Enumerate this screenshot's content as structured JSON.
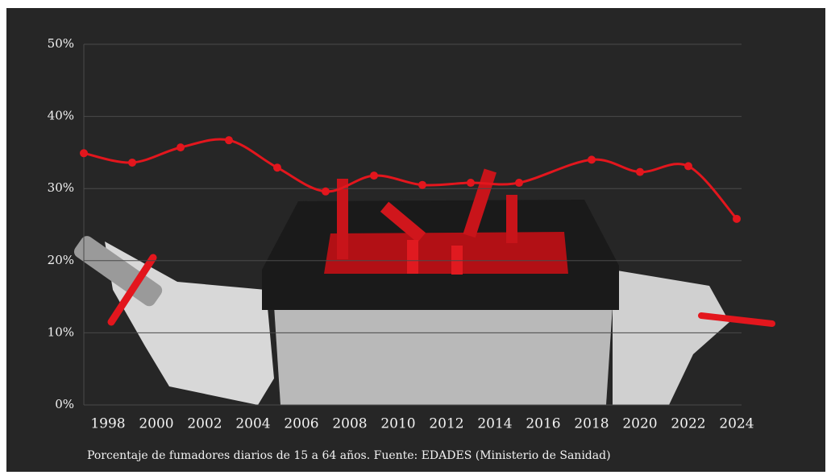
{
  "chart_data": {
    "type": "line",
    "caption": "Porcentaje de fumadores diarios de 15 a 64 años. Fuente: EDADES (Ministerio de Sanidad)",
    "x": [
      1997,
      1999,
      2001,
      2003,
      2005,
      2007,
      2009,
      2011,
      2013,
      2015,
      2018,
      2020,
      2022,
      2024
    ],
    "series": [
      {
        "color": "#e3161d",
        "values": [
          34.9,
          33.6,
          35.7,
          36.7,
          32.9,
          29.6,
          31.8,
          30.5,
          30.8,
          30.8,
          34.0,
          32.3,
          33.1,
          25.8
        ]
      }
    ],
    "xlim": [
      1997,
      2024.2
    ],
    "xticks": [
      1998,
      2000,
      2002,
      2004,
      2006,
      2008,
      2010,
      2012,
      2014,
      2016,
      2018,
      2020,
      2022,
      2024
    ],
    "ylim": [
      0,
      50
    ],
    "yticks": [
      {
        "value": 0,
        "label": "0%"
      },
      {
        "value": 10,
        "label": "10%"
      },
      {
        "value": 20,
        "label": "20%"
      },
      {
        "value": 30,
        "label": "30%"
      },
      {
        "value": 40,
        "label": "40%"
      },
      {
        "value": 50,
        "label": "50%"
      }
    ],
    "grid": true
  }
}
